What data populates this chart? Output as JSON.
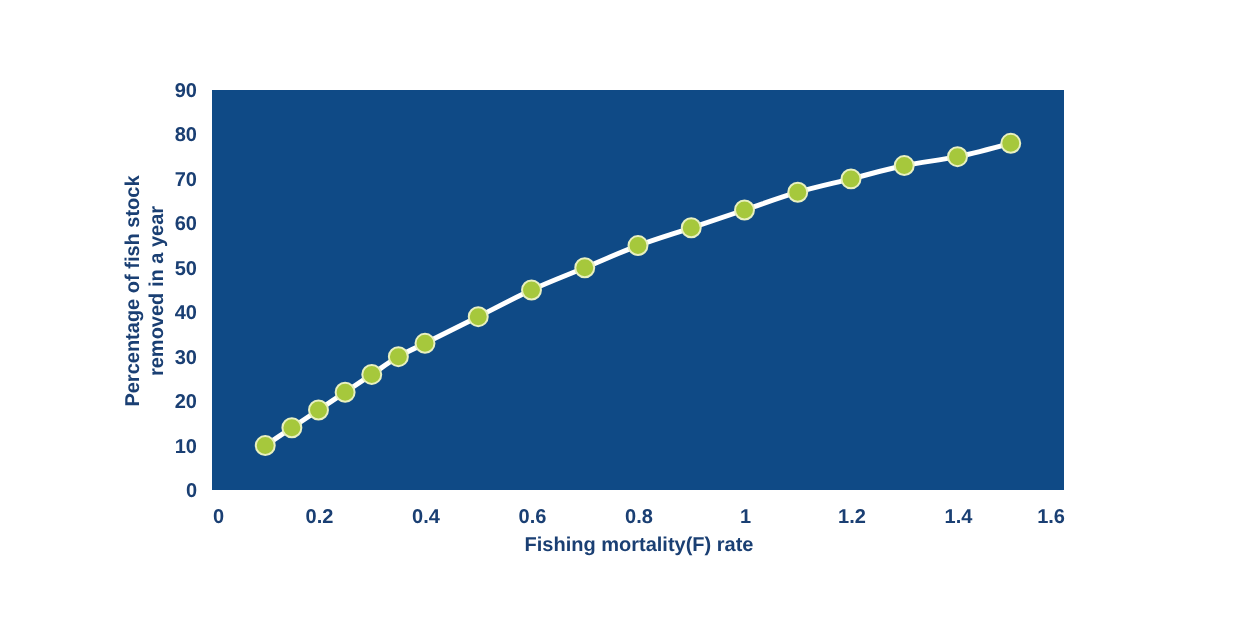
{
  "chart_data": {
    "type": "line",
    "xlabel": "Fishing mortality(F) rate",
    "ylabel": "Percentage of fish stock removed in a year",
    "x": [
      0.1,
      0.15,
      0.2,
      0.25,
      0.3,
      0.35,
      0.4,
      0.5,
      0.6,
      0.7,
      0.8,
      0.9,
      1.0,
      1.1,
      1.2,
      1.3,
      1.4,
      1.5
    ],
    "series": [
      {
        "color": "#ffffff",
        "values": [
          10,
          14,
          18,
          22,
          26,
          30,
          33,
          39,
          45,
          50,
          55,
          59,
          63,
          67,
          70,
          73,
          75,
          78
        ]
      }
    ],
    "xlim": [
      0,
      1.6
    ],
    "xticks": [
      0,
      0.2,
      0.4,
      0.6,
      0.8,
      1,
      1.2,
      1.4,
      1.6
    ],
    "ylim": [
      0,
      90
    ],
    "yticks": [
      0,
      10,
      20,
      30,
      40,
      50,
      60,
      70,
      80,
      90
    ],
    "marker": "circle",
    "line_style": "solid",
    "grid": false
  }
}
